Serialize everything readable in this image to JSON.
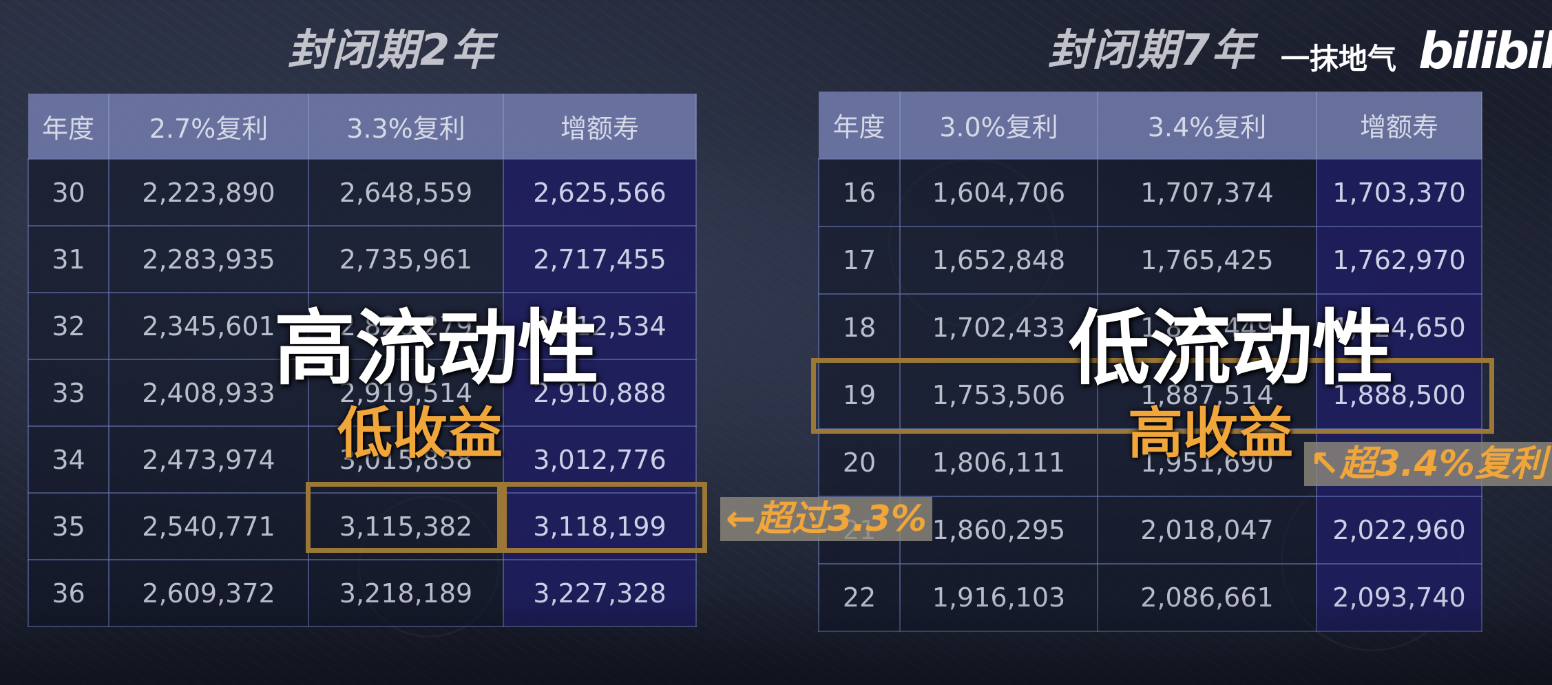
{
  "left": {
    "title": "封闭期2年",
    "headers": [
      "年度",
      "2.7%复利",
      "3.3%复利",
      "增额寿"
    ],
    "rows": [
      [
        "30",
        "2,223,890",
        "2,648,559",
        "2,625,566"
      ],
      [
        "31",
        "2,283,935",
        "2,735,961",
        "2,717,455"
      ],
      [
        "32",
        "2,345,601",
        "2,826,279",
        "2,812,534"
      ],
      [
        "33",
        "2,408,933",
        "2,919,514",
        "2,910,888"
      ],
      [
        "34",
        "2,473,974",
        "3,015,858",
        "3,012,776"
      ],
      [
        "35",
        "2,540,771",
        "3,115,382",
        "3,118,199"
      ],
      [
        "36",
        "2,609,372",
        "3,218,189",
        "3,227,328"
      ]
    ],
    "overlay_title": "高流动性",
    "overlay_sub": "低收益",
    "note_arrow": "←",
    "note_text": "超过3.3%"
  },
  "right": {
    "title": "封闭期7年",
    "headers": [
      "年度",
      "3.0%复利",
      "3.4%复利",
      "增额寿"
    ],
    "rows": [
      [
        "16",
        "1,604,706",
        "1,707,374",
        "1,703,370"
      ],
      [
        "17",
        "1,652,848",
        "1,765,425",
        "1,762,970"
      ],
      [
        "18",
        "1,702,433",
        "1,825,449",
        "1,824,650"
      ],
      [
        "19",
        "1,753,506",
        "1,887,514",
        "1,888,500"
      ],
      [
        "20",
        "1,806,111",
        "1,951,690",
        ""
      ],
      [
        "21",
        "1,860,295",
        "2,018,047",
        "2,022,960"
      ],
      [
        "22",
        "1,916,103",
        "2,086,661",
        "2,093,740"
      ]
    ],
    "overlay_title": "低流动性",
    "overlay_sub": "高收益",
    "note_arrow": "↖",
    "note_text": "超3.4%复利"
  },
  "brand": {
    "channel": "一抹地气",
    "logo": "bilibili"
  },
  "colors": {
    "header_bg": "#6e76a5",
    "highlight_col": "#1e1c5f",
    "frame": "#9b7836",
    "accent": "#f0a63a"
  }
}
